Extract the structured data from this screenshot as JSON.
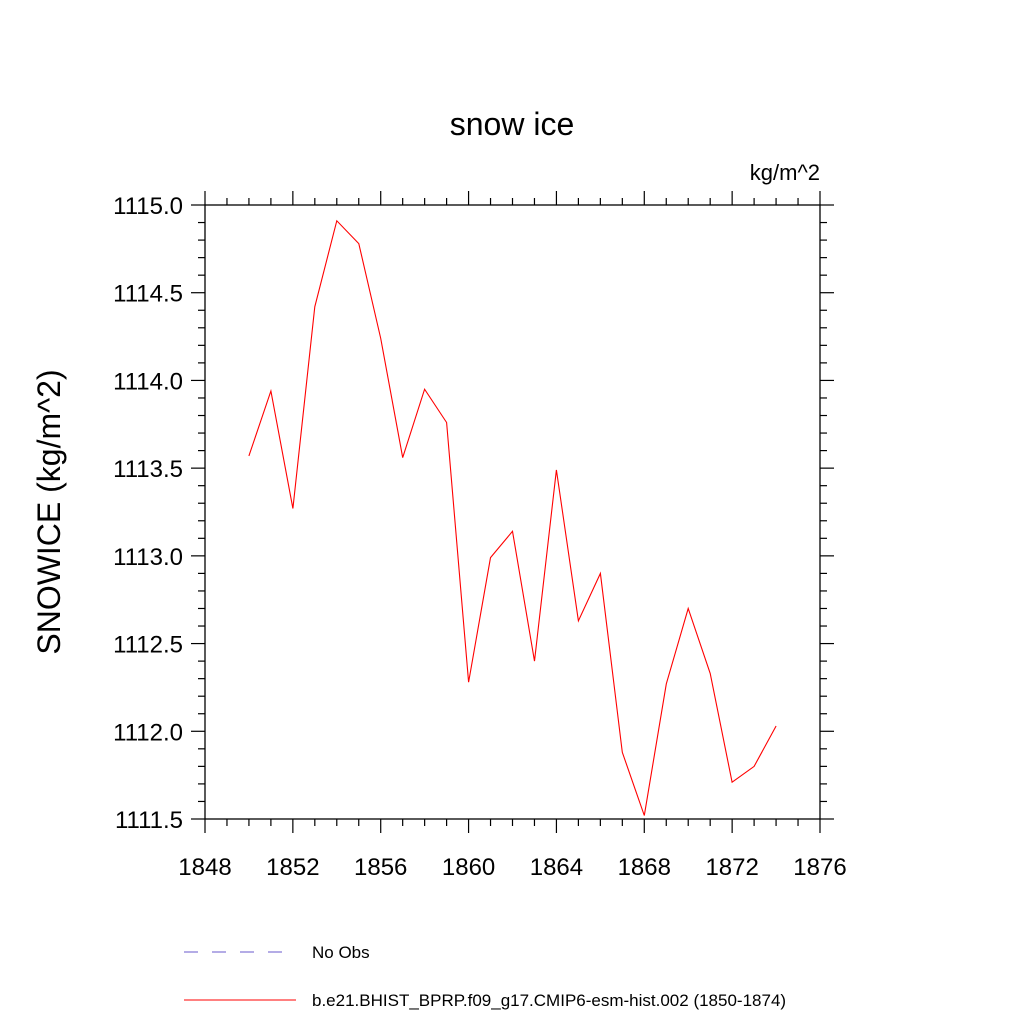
{
  "chart_data": {
    "type": "line",
    "title": "snow ice",
    "units_label": "kg/m^2",
    "ylabel": "SNOWICE  (kg/m^2)",
    "xlabel": "",
    "xlim": [
      1848,
      1876
    ],
    "ylim": [
      1111.5,
      1115.0
    ],
    "x_ticks": [
      1848,
      1852,
      1856,
      1860,
      1864,
      1868,
      1872,
      1876
    ],
    "x_tick_labels": [
      "1848",
      "1852",
      "1856",
      "1860",
      "1864",
      "1868",
      "1872",
      "1876"
    ],
    "y_ticks": [
      1111.5,
      1112.0,
      1112.5,
      1113.0,
      1113.5,
      1114.0,
      1114.5,
      1115.0
    ],
    "y_tick_labels": [
      "1111.5",
      "1112.0",
      "1112.5",
      "1113.0",
      "1113.5",
      "1114.0",
      "1114.5",
      "1115.0"
    ],
    "grid": false,
    "legend_position": "bottom",
    "series": [
      {
        "name": "No Obs",
        "color": "#6a5acd",
        "style": "dashed",
        "x": [],
        "y": []
      },
      {
        "name": "b.e21.BHIST_BPRP.f09_g17.CMIP6-esm-hist.002 (1850-1874)",
        "color": "#ff0000",
        "style": "solid",
        "x": [
          1850,
          1851,
          1852,
          1853,
          1854,
          1855,
          1856,
          1857,
          1858,
          1859,
          1860,
          1861,
          1862,
          1863,
          1864,
          1865,
          1866,
          1867,
          1868,
          1869,
          1870,
          1871,
          1872,
          1873,
          1874
        ],
        "y": [
          1113.57,
          1113.94,
          1113.27,
          1114.42,
          1114.91,
          1114.78,
          1114.24,
          1113.56,
          1113.95,
          1113.76,
          1112.28,
          1112.99,
          1113.14,
          1112.4,
          1113.49,
          1112.63,
          1112.9,
          1111.88,
          1111.52,
          1112.27,
          1112.7,
          1112.33,
          1111.71,
          1111.8,
          1112.03
        ]
      }
    ]
  }
}
